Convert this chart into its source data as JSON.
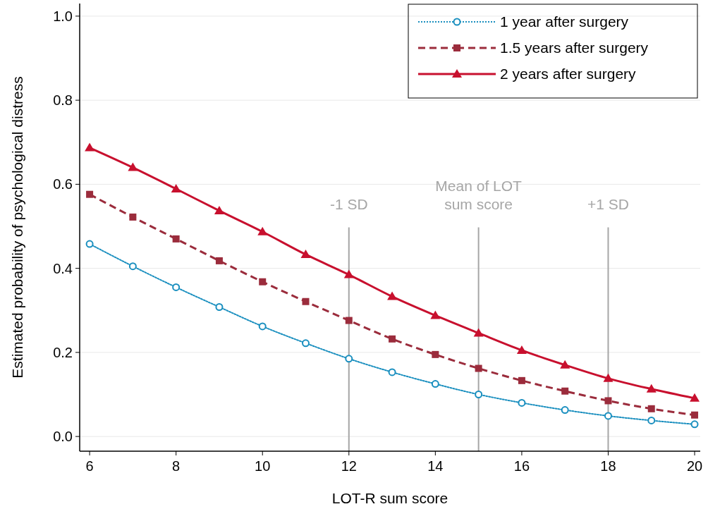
{
  "chart_data": {
    "type": "line",
    "xlabel": "LOT-R sum score",
    "ylabel": "Estimated probability of psychological distress",
    "x": [
      6,
      7,
      8,
      9,
      10,
      11,
      12,
      13,
      14,
      15,
      16,
      17,
      18,
      19,
      20
    ],
    "series": [
      {
        "name": "1 year after surgery",
        "color": "#1a8fbf",
        "marker": "circle",
        "line_style": "dotted",
        "values": [
          0.458,
          0.405,
          0.355,
          0.308,
          0.262,
          0.222,
          0.185,
          0.153,
          0.125,
          0.1,
          0.08,
          0.063,
          0.049,
          0.038,
          0.029
        ]
      },
      {
        "name": "1.5 years after surgery",
        "color": "#9b2c3c",
        "marker": "square",
        "line_style": "dashed",
        "values": [
          0.576,
          0.522,
          0.47,
          0.418,
          0.368,
          0.321,
          0.276,
          0.232,
          0.195,
          0.162,
          0.133,
          0.108,
          0.085,
          0.066,
          0.051
        ]
      },
      {
        "name": "2 years after surgery",
        "color": "#c8102e",
        "marker": "triangle",
        "line_style": "solid",
        "values": [
          0.687,
          0.64,
          0.589,
          0.537,
          0.487,
          0.433,
          0.385,
          0.333,
          0.288,
          0.246,
          0.205,
          0.17,
          0.138,
          0.113,
          0.091
        ]
      }
    ],
    "xlim": [
      5.77,
      20.13
    ],
    "xticks": [
      6,
      8,
      10,
      12,
      14,
      16,
      18,
      20
    ],
    "ylim": [
      -0.035,
      1.03
    ],
    "yticks": [
      {
        "value": 0,
        "label": "0.0"
      },
      {
        "value": 0.2,
        "label": "0.2"
      },
      {
        "value": 0.4,
        "label": "0.4"
      },
      {
        "value": 0.6,
        "label": "0.6"
      },
      {
        "value": 0.8,
        "label": "0.8"
      },
      {
        "value": 1,
        "label": "1.0"
      }
    ],
    "grid": "y",
    "legend": "top right",
    "ref_lines": [
      {
        "axis": "x",
        "value": 12,
        "label": "-1 SD",
        "color": "#a6a6a6"
      },
      {
        "axis": "x",
        "value": 15,
        "label": "Mean of LOT sum score",
        "color": "#a6a6a6"
      },
      {
        "axis": "x",
        "value": 18,
        "label": "+1 SD",
        "color": "#a6a6a6"
      }
    ]
  }
}
